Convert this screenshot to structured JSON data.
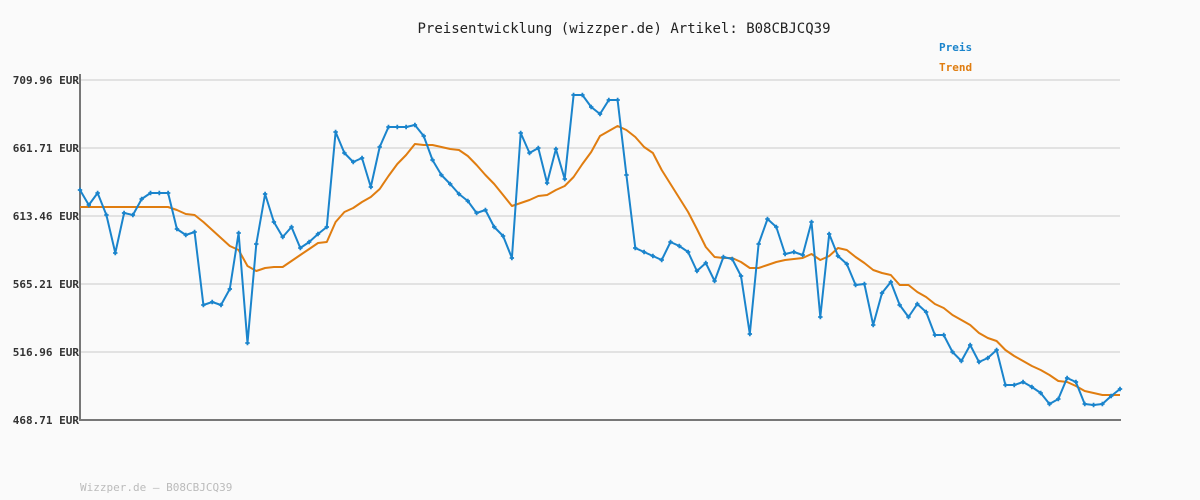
{
  "chart_data": {
    "type": "line",
    "title": "Preisentwicklung (wizzper.de) Artikel: B08CBJCQ39",
    "footer": "Wizzper.de – B08CBJCQ39",
    "ylim": [
      468.71,
      709.96
    ],
    "yticks": [
      "709.96 EUR",
      "661.71 EUR",
      "613.46 EUR",
      "565.21 EUR",
      "516.96 EUR",
      "468.71 EUR"
    ],
    "ytick_values": [
      709.96,
      661.71,
      613.46,
      565.21,
      516.96,
      468.71
    ],
    "grid": true,
    "legend_position": "top-right",
    "series": [
      {
        "name": "Preis",
        "color": "#1a84cc",
        "markers": true,
        "values": [
          631.91,
          621.26,
          629.78,
          614.17,
          587.21,
          615.59,
          614.17,
          625.52,
          629.78,
          629.78,
          629.78,
          604.24,
          599.98,
          602.11,
          550.31,
          552.44,
          550.31,
          561.66,
          601.4,
          523.35,
          593.59,
          629.07,
          609.2,
          598.56,
          605.65,
          590.75,
          595.01,
          600.69,
          605.65,
          673.06,
          658.16,
          651.78,
          654.61,
          634.04,
          662.42,
          676.61,
          676.61,
          676.61,
          678.03,
          670.22,
          653.2,
          642.55,
          636.17,
          629.07,
          624.1,
          615.59,
          617.72,
          605.65,
          599.27,
          583.66,
          672.35,
          658.16,
          661.71,
          636.88,
          661.0,
          639.71,
          699.32,
          699.32,
          690.8,
          685.83,
          695.77,
          695.77,
          642.55,
          590.75,
          587.92,
          585.08,
          582.24,
          595.01,
          592.17,
          587.92,
          574.43,
          580.11,
          567.34,
          584.37,
          582.95,
          570.89,
          529.73,
          593.59,
          611.33,
          605.65,
          586.5,
          587.92,
          585.79,
          609.2,
          541.79,
          600.69,
          585.08,
          579.4,
          564.5,
          565.21,
          536.12,
          558.82,
          566.63,
          550.31,
          541.79,
          551.02,
          545.34,
          529.02,
          529.02,
          516.96,
          510.57,
          521.93,
          509.86,
          512.7,
          518.38,
          493.54,
          493.54,
          495.67,
          492.13,
          487.87,
          480.06,
          483.61,
          498.51,
          495.67,
          480.06,
          479.35,
          480.06,
          485.74,
          490.71
        ]
      },
      {
        "name": "Trend",
        "color": "#e07d10",
        "markers": false,
        "values": [
          619.85,
          619.85,
          619.85,
          619.85,
          619.85,
          619.85,
          619.85,
          619.85,
          619.85,
          619.85,
          619.85,
          617.72,
          614.88,
          614.17,
          609.2,
          603.53,
          597.85,
          592.17,
          589.34,
          577.98,
          574.43,
          576.56,
          577.27,
          577.27,
          581.53,
          585.79,
          590.04,
          594.3,
          595.01,
          609.2,
          616.3,
          619.14,
          623.39,
          626.94,
          632.62,
          641.84,
          650.36,
          656.74,
          664.55,
          663.84,
          663.84,
          662.42,
          661.0,
          660.29,
          656.03,
          649.65,
          642.55,
          636.17,
          628.36,
          620.56,
          622.68,
          624.81,
          627.65,
          628.36,
          631.91,
          634.75,
          641.13,
          650.36,
          658.87,
          670.22,
          673.77,
          677.32,
          674.48,
          669.51,
          662.42,
          658.16,
          646.1,
          636.17,
          626.23,
          616.3,
          604.24,
          591.46,
          584.37,
          583.66,
          583.66,
          580.82,
          576.56,
          576.56,
          578.69,
          580.82,
          582.24,
          582.95,
          583.66,
          586.5,
          582.24,
          585.08,
          590.75,
          589.34,
          584.37,
          580.11,
          575.14,
          573.01,
          571.6,
          564.5,
          564.5,
          559.53,
          556.01,
          551.02,
          548.18,
          543.21,
          539.67,
          536.12,
          530.44,
          526.9,
          524.76,
          518.38,
          514.12,
          510.57,
          507.03,
          504.19,
          500.64,
          496.39,
          495.67,
          492.84,
          489.29,
          487.87,
          486.45,
          486.45,
          486.45
        ]
      }
    ]
  }
}
